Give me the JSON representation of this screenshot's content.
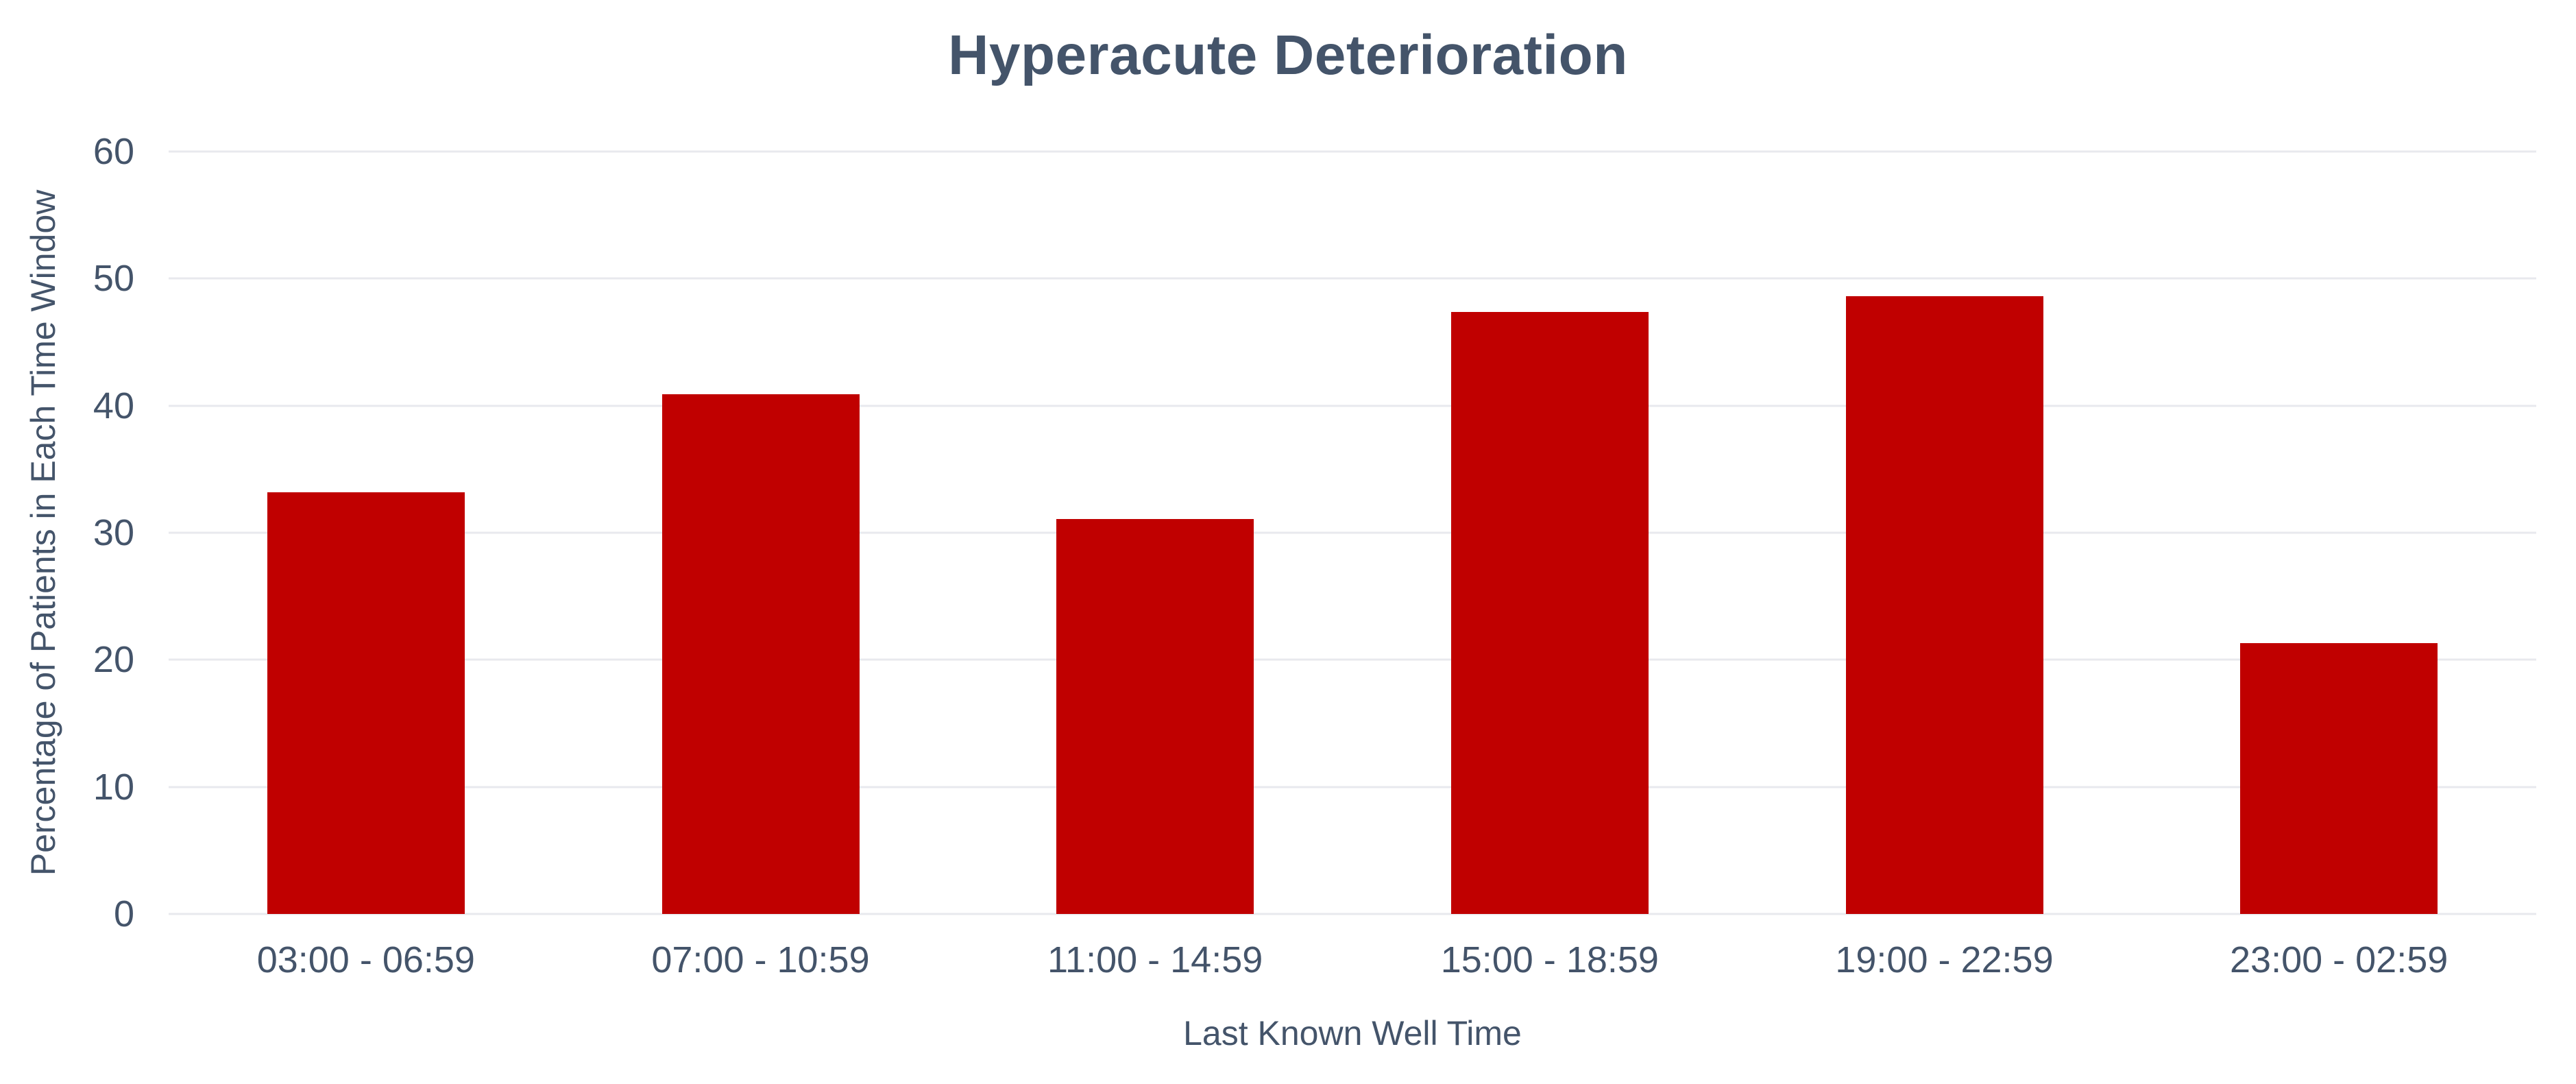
{
  "chart_data": {
    "type": "bar",
    "title": "Hyperacute Deterioration",
    "xlabel": "Last Known Well Time",
    "ylabel": "Percentage of Patients in Each Time Window",
    "categories": [
      "03:00 - 06:59",
      "07:00 - 10:59",
      "11:00 - 14:59",
      "15:00 - 18:59",
      "19:00 - 22:59",
      "23:00 - 02:59"
    ],
    "values": [
      33.2,
      40.9,
      31.1,
      47.4,
      48.6,
      21.3
    ],
    "ylim": [
      0,
      60
    ],
    "yticks": [
      0,
      10,
      20,
      30,
      40,
      50,
      60
    ],
    "grid": "horizontal",
    "legend_position": "none",
    "bar_color": "#C00000",
    "text_color": "#44546A",
    "gridline_color": "#E8E9EE",
    "background_color": "#FFFFFF"
  }
}
